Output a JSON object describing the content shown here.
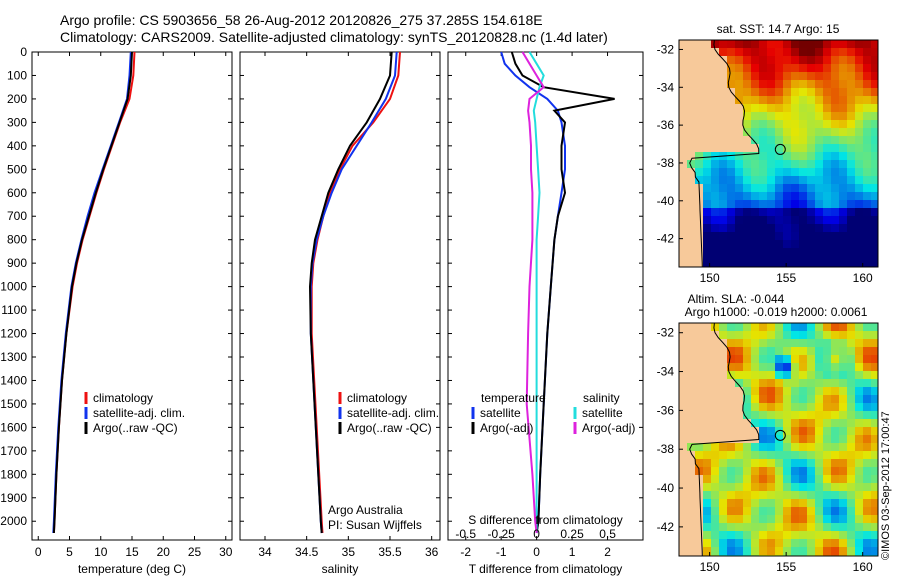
{
  "header": {
    "title_line1": "Argo profile: CS 5903656_58 26-Aug-2012 20120826_275 37.285S 154.618E",
    "title_line2": "Climatology: CARS2009. Satellite-adjusted climatology: synTS_20120828.nc (1.4d later)"
  },
  "colors": {
    "climatology": "#ee1111",
    "satellite": "#1133ee",
    "argo": "#000000",
    "s_satellite": "#22dddd",
    "s_argo": "#dd22dd",
    "land": "#f7c99a"
  },
  "chart_data": [
    {
      "type": "line",
      "name": "temperature",
      "xlabel": "temperature (deg C)",
      "ylabel": "",
      "xlim": [
        -1,
        31
      ],
      "ylim": [
        2080,
        0
      ],
      "xticks": [
        "0",
        "5",
        "10",
        "15",
        "20",
        "25",
        "30"
      ],
      "yticks": [
        "0",
        "100",
        "200",
        "300",
        "400",
        "500",
        "600",
        "700",
        "800",
        "900",
        "1000",
        "1100",
        "1200",
        "1300",
        "1400",
        "1500",
        "1600",
        "1700",
        "1800",
        "1900",
        "2000"
      ],
      "depth": [
        0,
        100,
        200,
        300,
        400,
        500,
        600,
        700,
        800,
        900,
        1000,
        1200,
        1400,
        1600,
        1800,
        2000,
        2050
      ],
      "series": [
        {
          "name": "climatology",
          "values": [
            15.4,
            15.2,
            14.6,
            13.1,
            11.8,
            10.5,
            9.3,
            8.2,
            7.1,
            6.2,
            5.5,
            4.5,
            3.8,
            3.3,
            2.9,
            2.6,
            2.5
          ]
        },
        {
          "name": "satellite-adj. clim.",
          "values": [
            14.8,
            14.6,
            14.2,
            12.9,
            11.6,
            10.3,
            9.0,
            7.9,
            6.9,
            6.0,
            5.3,
            4.4,
            3.7,
            3.2,
            2.8,
            2.5,
            2.4
          ]
        },
        {
          "name": "Argo(..raw -QC)",
          "values": [
            15.0,
            14.8,
            14.3,
            13.0,
            11.7,
            10.4,
            9.2,
            8.1,
            7.0,
            6.1,
            5.4,
            4.5,
            3.8,
            3.3,
            2.9,
            2.6,
            2.5
          ]
        }
      ],
      "legend": [
        "climatology",
        "satellite-adj. clim.",
        "Argo(..raw -QC)"
      ]
    },
    {
      "type": "line",
      "name": "salinity",
      "xlabel": "salinity",
      "xlim": [
        33.7,
        36.1
      ],
      "ylim": [
        2080,
        0
      ],
      "xticks": [
        "34",
        "34.5",
        "35",
        "35.5",
        "36"
      ],
      "depth": [
        0,
        100,
        200,
        300,
        400,
        500,
        600,
        700,
        800,
        900,
        1000,
        1200,
        1400,
        1600,
        1800,
        2000,
        2050
      ],
      "series": [
        {
          "name": "climatology",
          "values": [
            35.62,
            35.6,
            35.5,
            35.3,
            35.05,
            34.9,
            34.78,
            34.7,
            34.63,
            34.58,
            34.56,
            34.56,
            34.59,
            34.62,
            34.65,
            34.68,
            34.69
          ]
        },
        {
          "name": "satellite-adj. clim.",
          "values": [
            35.58,
            35.56,
            35.45,
            35.28,
            35.1,
            34.92,
            34.8,
            34.7,
            34.62,
            34.57,
            34.55,
            34.55,
            34.58,
            34.61,
            34.64,
            34.67,
            34.68
          ]
        },
        {
          "name": "Argo(..raw -QC)",
          "values": [
            35.52,
            35.5,
            35.38,
            35.22,
            35.02,
            34.88,
            34.76,
            34.68,
            34.6,
            34.56,
            34.54,
            34.55,
            34.58,
            34.61,
            34.64,
            34.67,
            34.68
          ]
        }
      ],
      "legend": [
        "climatology",
        "satellite-adj. clim.",
        "Argo(..raw -QC)"
      ],
      "annotation": [
        "Argo Australia",
        "PI: Susan Wijffels"
      ]
    },
    {
      "type": "line",
      "name": "difference",
      "xlabel": "T difference from climatology",
      "x2label": "S difference from climatology",
      "xlim": [
        -2.5,
        3.0
      ],
      "ylim": [
        2080,
        0
      ],
      "xticks": [
        "-2",
        "-1",
        "0",
        "1",
        "2"
      ],
      "x2ticks": [
        "-0.5",
        "-0.25",
        "0",
        "0.25",
        "0.5"
      ],
      "depth": [
        0,
        50,
        100,
        150,
        200,
        250,
        300,
        400,
        500,
        600,
        700,
        800,
        1000,
        1200,
        1500,
        1800,
        2000,
        2050
      ],
      "series": [
        {
          "name": "temperature satellite",
          "values": [
            -1.0,
            -0.9,
            -0.6,
            -0.2,
            0.3,
            0.6,
            0.7,
            0.8,
            0.8,
            0.7,
            0.6,
            0.5,
            0.4,
            0.3,
            0.2,
            0.1,
            0.05,
            0.0
          ]
        },
        {
          "name": "temperature Argo(-adj)",
          "values": [
            -0.7,
            -0.6,
            -0.4,
            0.2,
            2.2,
            0.5,
            0.8,
            0.7,
            0.7,
            0.8,
            0.6,
            0.5,
            0.4,
            0.3,
            0.2,
            0.1,
            0.05,
            0.0
          ]
        },
        {
          "name": "salinity satellite",
          "values": [
            -0.05,
            0.0,
            0.05,
            0.02,
            0.0,
            -0.02,
            -0.01,
            0.0,
            0.01,
            0.02,
            0.01,
            0.0,
            0.0,
            0.0,
            0.0,
            0.0,
            0.0,
            0.0
          ]
        },
        {
          "name": "salinity Argo(-adj)",
          "values": [
            -0.1,
            -0.05,
            0.0,
            0.05,
            -0.05,
            -0.06,
            -0.05,
            -0.04,
            -0.04,
            -0.03,
            -0.03,
            -0.03,
            -0.05,
            -0.06,
            -0.07,
            -0.03,
            -0.01,
            0.0
          ]
        }
      ],
      "legend_headers": [
        "temperature",
        "salinity"
      ],
      "legend": [
        "satellite",
        "Argo(-adj)",
        "satellite",
        "Argo(-adj)"
      ]
    },
    {
      "type": "heatmap",
      "name": "sst-map",
      "title": "sat. SST: 14.7 Argo: 15",
      "xticks": [
        "150",
        "155",
        "160"
      ],
      "yticks": [
        "-32",
        "-34",
        "-36",
        "-38",
        "-40",
        "-42"
      ],
      "xlim": [
        148,
        161
      ],
      "ylim": [
        -43.5,
        -31.5
      ],
      "marker": [
        154.618,
        -37.285
      ]
    },
    {
      "type": "heatmap",
      "name": "sla-map",
      "title_line1": "Altim. SLA: -0.044",
      "title_line2": "Argo h1000: -0.019 h2000: 0.0061",
      "xticks": [
        "150",
        "155",
        "160"
      ],
      "yticks": [
        "-32",
        "-34",
        "-36",
        "-38",
        "-40",
        "-42"
      ],
      "xlim": [
        148,
        161
      ],
      "ylim": [
        -43.5,
        -31.5
      ],
      "marker": [
        154.618,
        -37.285
      ]
    }
  ],
  "footer": {
    "stamp": "©IMOS 03-Sep-2012 17:00:47"
  }
}
